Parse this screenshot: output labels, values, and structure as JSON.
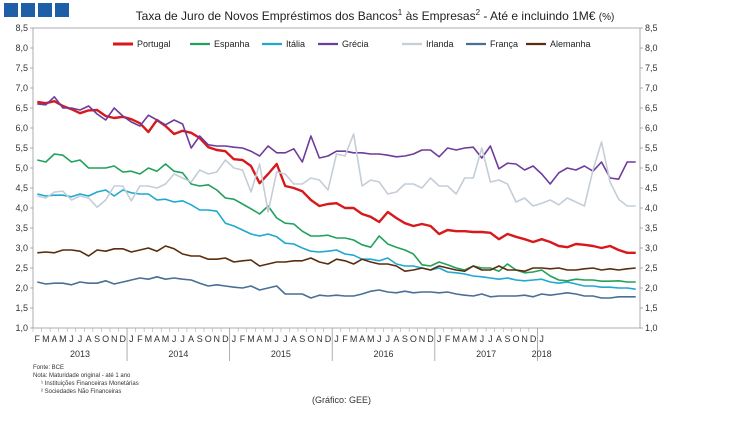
{
  "header": {
    "title_part1": "Taxa de Juro de Novos Empréstimos dos Bancos",
    "sup1": "1",
    "title_part2": " às Empresas",
    "sup2": "2",
    "title_part3": " - Até e incluindo 1M€ ",
    "unit": "(%)"
  },
  "footer": {
    "source": "Fonte: BCE",
    "note": "Nota: Maturidade original - até 1 ano",
    "fn1": "¹ Instituições Financeiras Monetárias",
    "fn2": "² Sociedades Não Financeiras",
    "credit": "(Gráfico: GEE)"
  },
  "chart_data": {
    "type": "line",
    "title": "Taxa de Juro de Novos Empréstimos dos Bancos às Empresas - Até e incluindo 1M€ (%)",
    "ylim": [
      1.0,
      8.5
    ],
    "yticks": [
      "1,0",
      "1,5",
      "2,0",
      "2,5",
      "3,0",
      "3,5",
      "4,0",
      "4,5",
      "5,0",
      "5,5",
      "6,0",
      "6,5",
      "7,0",
      "7,5",
      "8,0",
      "8,5"
    ],
    "month_letters": [
      "J",
      "F",
      "M",
      "A",
      "M",
      "J",
      "J",
      "A",
      "S",
      "O",
      "N",
      "D"
    ],
    "first_month_letter": "F",
    "years": [
      {
        "label": "2013",
        "months": 11
      },
      {
        "label": "2014",
        "months": 12
      },
      {
        "label": "2015",
        "months": 12
      },
      {
        "label": "2016",
        "months": 12
      },
      {
        "label": "2017",
        "months": 12
      },
      {
        "label": "2018",
        "months": 1
      }
    ],
    "series": [
      {
        "name": "Portugal",
        "color": "#d7191c",
        "width": 2.4,
        "values": [
          6.65,
          6.62,
          6.67,
          6.55,
          6.47,
          6.37,
          6.44,
          6.45,
          6.3,
          6.25,
          6.28,
          6.22,
          6.12,
          5.9,
          6.2,
          6.05,
          5.85,
          5.93,
          5.88,
          5.75,
          5.52,
          5.45,
          5.42,
          5.22,
          5.2,
          5.05,
          4.62,
          4.85,
          5.1,
          4.55,
          4.5,
          4.42,
          4.2,
          4.05,
          4.1,
          4.12,
          4.0,
          4.0,
          3.85,
          3.78,
          3.65,
          3.9,
          3.75,
          3.62,
          3.55,
          3.6,
          3.55,
          3.35,
          3.45,
          3.42,
          3.42,
          3.4,
          3.4,
          3.38,
          3.22,
          3.35,
          3.28,
          3.22,
          3.15,
          3.22,
          3.15,
          3.05,
          3.02,
          3.1,
          3.08,
          3.05,
          3.0,
          3.05,
          2.95,
          2.88,
          2.88
        ]
      },
      {
        "name": "Espanha",
        "color": "#22a15c",
        "width": 1.6,
        "values": [
          5.2,
          5.15,
          5.35,
          5.32,
          5.15,
          5.2,
          5.0,
          5.0,
          5.0,
          5.05,
          4.9,
          4.92,
          4.85,
          5.0,
          4.92,
          5.1,
          4.92,
          4.88,
          4.6,
          4.55,
          4.58,
          4.45,
          4.25,
          4.22,
          4.1,
          3.98,
          3.85,
          4.05,
          3.75,
          3.62,
          3.6,
          3.42,
          3.3,
          3.3,
          3.32,
          3.25,
          3.25,
          3.2,
          3.08,
          3.02,
          3.3,
          3.1,
          3.02,
          2.95,
          2.85,
          2.58,
          2.55,
          2.65,
          2.58,
          2.5,
          2.45,
          2.55,
          2.5,
          2.5,
          2.42,
          2.6,
          2.45,
          2.38,
          2.4,
          2.45,
          2.3,
          2.2,
          2.18,
          2.22,
          2.2,
          2.2,
          2.17,
          2.17,
          2.18,
          2.15,
          2.15
        ]
      },
      {
        "name": "Itália",
        "color": "#1fa8d0",
        "width": 1.6,
        "values": [
          4.35,
          4.3,
          4.32,
          4.32,
          4.28,
          4.35,
          4.3,
          4.4,
          4.45,
          4.3,
          4.45,
          4.38,
          4.35,
          4.35,
          4.2,
          4.22,
          4.15,
          4.18,
          4.08,
          3.95,
          3.95,
          3.92,
          3.62,
          3.55,
          3.45,
          3.35,
          3.3,
          3.35,
          3.28,
          3.12,
          3.1,
          3.0,
          2.92,
          2.9,
          2.92,
          2.95,
          2.85,
          2.82,
          2.72,
          2.72,
          2.68,
          2.75,
          2.6,
          2.55,
          2.55,
          2.5,
          2.45,
          2.5,
          2.4,
          2.38,
          2.35,
          2.3,
          2.28,
          2.25,
          2.22,
          2.25,
          2.2,
          2.18,
          2.2,
          2.22,
          2.15,
          2.12,
          2.15,
          2.1,
          2.05,
          2.05,
          2.02,
          2.02,
          2.0,
          2.0,
          1.97
        ]
      },
      {
        "name": "Grécia",
        "color": "#6e3c9a",
        "width": 1.6,
        "values": [
          6.6,
          6.58,
          6.78,
          6.5,
          6.5,
          6.45,
          6.55,
          6.35,
          6.2,
          6.5,
          6.3,
          6.15,
          6.05,
          6.32,
          6.2,
          6.08,
          6.2,
          6.1,
          5.5,
          5.8,
          5.58,
          5.55,
          5.55,
          5.52,
          5.5,
          5.42,
          5.3,
          5.55,
          5.38,
          5.38,
          5.48,
          5.15,
          5.8,
          5.25,
          5.3,
          5.42,
          5.42,
          5.38,
          5.38,
          5.35,
          5.35,
          5.32,
          5.28,
          5.3,
          5.35,
          5.45,
          5.45,
          5.28,
          5.5,
          5.45,
          5.5,
          5.52,
          5.25,
          5.55,
          4.98,
          5.12,
          5.1,
          4.95,
          5.05,
          4.85,
          4.6,
          4.88,
          5.0,
          4.95,
          5.05,
          4.92,
          5.15,
          4.75,
          4.72,
          5.15,
          5.15
        ]
      },
      {
        "name": "Irlanda",
        "color": "#c4cdd8",
        "width": 1.6,
        "values": [
          4.3,
          4.25,
          4.4,
          4.42,
          4.2,
          4.3,
          4.25,
          4.02,
          4.2,
          4.55,
          4.55,
          4.18,
          4.55,
          4.55,
          4.5,
          4.6,
          4.85,
          4.75,
          4.65,
          4.95,
          4.85,
          4.9,
          5.2,
          5.0,
          4.95,
          4.4,
          5.1,
          3.9,
          4.9,
          4.85,
          4.6,
          4.6,
          4.75,
          4.7,
          4.45,
          5.35,
          5.3,
          5.85,
          4.55,
          4.7,
          4.65,
          4.35,
          4.4,
          4.6,
          4.6,
          4.5,
          4.75,
          4.55,
          4.55,
          4.35,
          4.75,
          4.75,
          5.5,
          4.65,
          4.7,
          4.6,
          4.15,
          4.25,
          4.05,
          4.12,
          4.2,
          4.08,
          4.25,
          4.15,
          4.05,
          4.95,
          5.65,
          4.65,
          4.22,
          4.05,
          4.05
        ]
      },
      {
        "name": "França",
        "color": "#4a6f95",
        "width": 1.6,
        "values": [
          2.15,
          2.1,
          2.12,
          2.12,
          2.08,
          2.15,
          2.12,
          2.12,
          2.18,
          2.1,
          2.15,
          2.2,
          2.25,
          2.22,
          2.28,
          2.22,
          2.25,
          2.22,
          2.2,
          2.12,
          2.05,
          2.08,
          2.05,
          2.02,
          2.0,
          2.05,
          1.95,
          2.0,
          2.05,
          1.85,
          1.85,
          1.85,
          1.75,
          1.82,
          1.8,
          1.82,
          1.8,
          1.8,
          1.85,
          1.92,
          1.95,
          1.9,
          1.88,
          1.92,
          1.88,
          1.9,
          1.9,
          1.88,
          1.9,
          1.85,
          1.82,
          1.8,
          1.85,
          1.78,
          1.8,
          1.8,
          1.8,
          1.82,
          1.78,
          1.85,
          1.82,
          1.85,
          1.88,
          1.85,
          1.8,
          1.8,
          1.75,
          1.75,
          1.78,
          1.78,
          1.78
        ]
      },
      {
        "name": "Alemanha",
        "color": "#5b2c0d",
        "width": 1.6,
        "values": [
          2.88,
          2.9,
          2.88,
          2.95,
          2.95,
          2.92,
          2.8,
          2.95,
          2.92,
          2.98,
          2.98,
          2.9,
          2.95,
          3.0,
          2.92,
          3.05,
          2.98,
          2.85,
          2.8,
          2.8,
          2.72,
          2.72,
          2.75,
          2.65,
          2.68,
          2.7,
          2.55,
          2.6,
          2.65,
          2.65,
          2.68,
          2.68,
          2.75,
          2.65,
          2.6,
          2.72,
          2.68,
          2.6,
          2.72,
          2.65,
          2.6,
          2.6,
          2.55,
          2.42,
          2.45,
          2.5,
          2.45,
          2.55,
          2.5,
          2.45,
          2.42,
          2.55,
          2.45,
          2.45,
          2.55,
          2.45,
          2.45,
          2.42,
          2.5,
          2.5,
          2.48,
          2.5,
          2.45,
          2.45,
          2.48,
          2.5,
          2.45,
          2.48,
          2.45,
          2.48,
          2.5
        ]
      }
    ]
  }
}
